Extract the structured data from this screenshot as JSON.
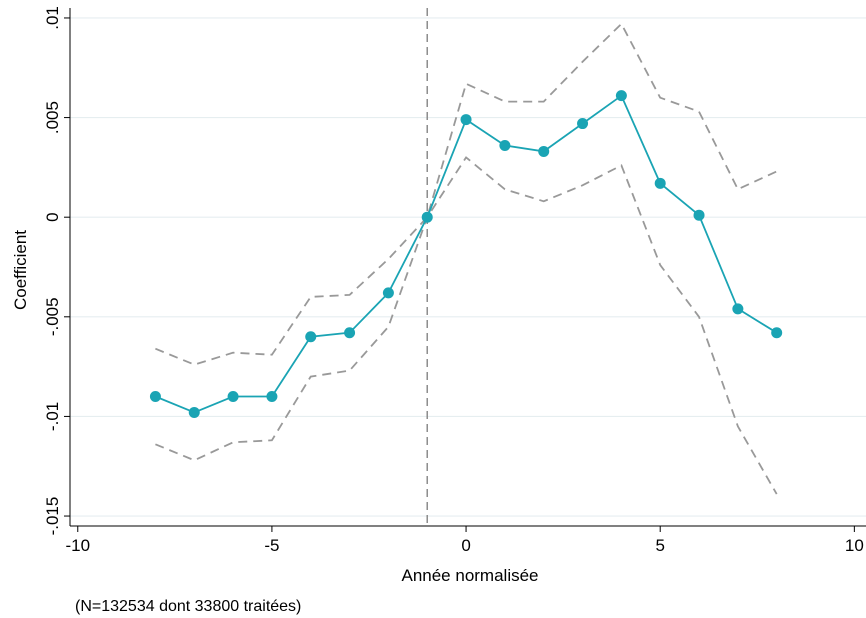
{
  "chart_data": {
    "type": "line",
    "title": "",
    "xlabel": "Année normalisée",
    "ylabel": "Coefficient",
    "note": "(N=132534 dont 33800 traitées)",
    "xlim": [
      -10.2,
      10.3
    ],
    "ylim": [
      -0.0155,
      0.0105
    ],
    "x_ticks": [
      -10,
      -5,
      0,
      5,
      10
    ],
    "x_tick_labels": [
      "-10",
      "-5",
      "0",
      "5",
      "10"
    ],
    "y_ticks": [
      -0.015,
      -0.01,
      -0.005,
      0,
      0.005,
      0.01
    ],
    "y_tick_labels": [
      "-.015",
      "-.01",
      "-.005",
      "0",
      ".005",
      ".01"
    ],
    "grid": "horizontal",
    "reference_line_x": -1,
    "x": [
      -8,
      -7,
      -6,
      -5,
      -4,
      -3,
      -2,
      -1,
      0,
      1,
      2,
      3,
      4,
      5,
      6,
      7,
      8
    ],
    "series": [
      {
        "values": [
          -0.009,
          -0.0098,
          -0.009,
          -0.009,
          -0.006,
          -0.0058,
          -0.0038,
          0,
          0.0049,
          0.0036,
          0.0033,
          0.0047,
          0.0061,
          0.0017,
          0.0001,
          -0.0046,
          -0.0058
        ],
        "style": "solid-markers",
        "color": "#1aa4b4"
      },
      {
        "values": [
          -0.0066,
          -0.0074,
          -0.0068,
          -0.0069,
          -0.004,
          -0.0039,
          -0.0021,
          0,
          0.0067,
          0.0058,
          0.0058,
          0.0078,
          0.0097,
          0.006,
          0.0053,
          0.0014,
          0.0023
        ],
        "style": "dashed",
        "color": "#999999"
      },
      {
        "values": [
          -0.0114,
          -0.0122,
          -0.0113,
          -0.0112,
          -0.008,
          -0.0077,
          -0.0055,
          0,
          0.003,
          0.0014,
          0.0008,
          0.0016,
          0.0026,
          -0.0024,
          -0.005,
          -0.0105,
          -0.0139
        ],
        "style": "dashed",
        "color": "#999999"
      }
    ],
    "colors": {
      "grid": "#e6eef0",
      "reference_line": "#8c8c8c",
      "axis": "#000000"
    }
  }
}
